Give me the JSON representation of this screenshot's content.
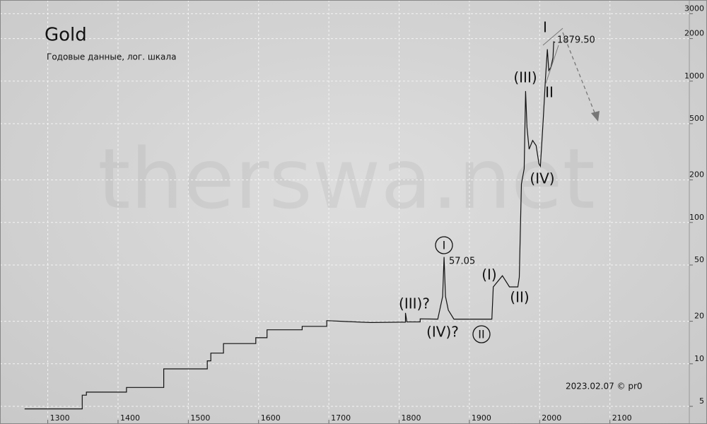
{
  "chart_data": {
    "type": "line",
    "title": "Gold",
    "subtitle": "Годовые данные, лог. шкала",
    "watermark": "therswa.net",
    "footer": "2023.02.07 © pr0",
    "x": [
      1267,
      1349,
      1349,
      1355,
      1355,
      1412,
      1412,
      1465,
      1465,
      1527,
      1527,
      1532,
      1532,
      1550,
      1550,
      1596,
      1596,
      1612,
      1612,
      1662,
      1662,
      1697,
      1697,
      1725,
      1760,
      1800,
      1809,
      1809,
      1811,
      1830,
      1830,
      1855,
      1862,
      1864,
      1866,
      1870,
      1878,
      1932,
      1934,
      1947,
      1957,
      1969,
      1971,
      1974,
      1978,
      1980,
      1982,
      1985,
      1990,
      1995,
      1999,
      2001,
      2003,
      2005,
      2007,
      2008,
      2011,
      2013,
      2016,
      2019,
      2020,
      2022
    ],
    "values": [
      4.8,
      4.8,
      6.0,
      6.0,
      6.3,
      6.3,
      6.8,
      6.8,
      9.2,
      9.2,
      10.5,
      10.5,
      11.9,
      11.9,
      13.9,
      13.9,
      15.3,
      15.3,
      17.4,
      17.4,
      18.4,
      18.4,
      20.2,
      19.9,
      19.6,
      19.7,
      19.7,
      22.9,
      19.8,
      19.8,
      20.8,
      20.7,
      30,
      57.05,
      30,
      24,
      20.7,
      20.7,
      35,
      42,
      35,
      35,
      41,
      187,
      240,
      850,
      470,
      330,
      380,
      350,
      260,
      250,
      360,
      530,
      800,
      1000,
      1680,
      1190,
      1250,
      1470,
      1900,
      1879.5
    ],
    "color": "#111111",
    "xlim": [
      1232,
      2213
    ],
    "xticks": [
      1300,
      1400,
      1500,
      1600,
      1700,
      1800,
      1900,
      2000,
      2100
    ],
    "ylim": [
      3.75,
      3750
    ],
    "yticks": [
      5,
      10,
      20,
      50,
      100,
      200,
      500,
      1000,
      2000,
      3000
    ],
    "log_y": true,
    "grid": true,
    "annotations": [
      "I",
      "57.05",
      "(III)?",
      "(IV)?",
      "II",
      "(I)",
      "(II)",
      "(III)",
      "(IV)",
      "I",
      "II",
      "1879.50"
    ]
  }
}
